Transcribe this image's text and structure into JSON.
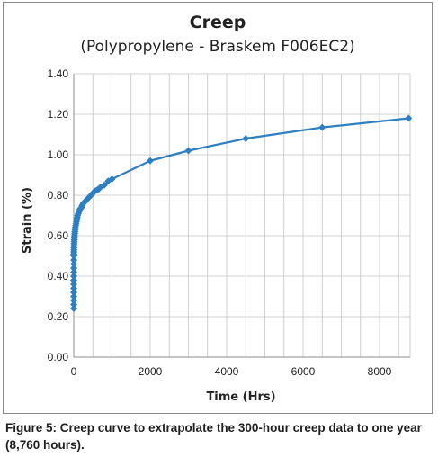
{
  "chart_data": {
    "type": "line",
    "title": "Creep",
    "subtitle": "(Polypropylene - Braskem F006EC2)",
    "xlabel": "Time (Hrs)",
    "ylabel": "Strain (%)",
    "xlim": [
      0,
      8800
    ],
    "ylim": [
      0,
      1.4
    ],
    "x_ticks": [
      "0",
      "2000",
      "4000",
      "6000",
      "8000"
    ],
    "y_ticks": [
      "0.00",
      "0.20",
      "0.40",
      "0.60",
      "0.80",
      "1.00",
      "1.20",
      "1.40"
    ],
    "grid": true,
    "legend": "none",
    "series": [
      {
        "color": "#2e7fc2",
        "marker": "diamond",
        "x": [
          0,
          0,
          0,
          0,
          0,
          0,
          0,
          0,
          0,
          0,
          1,
          1,
          2,
          2,
          3,
          3,
          5,
          6,
          8,
          10,
          12,
          15,
          18,
          20,
          25,
          30,
          35,
          40,
          50,
          60,
          70,
          80,
          90,
          100,
          120,
          140,
          160,
          180,
          200,
          220,
          250,
          280,
          300,
          350,
          400,
          450,
          500,
          550,
          600,
          650,
          700,
          800,
          900,
          1000,
          2000,
          3000,
          4500,
          6500,
          8760
        ],
        "y": [
          0.24,
          0.26,
          0.28,
          0.3,
          0.32,
          0.34,
          0.36,
          0.38,
          0.4,
          0.42,
          0.44,
          0.46,
          0.48,
          0.5,
          0.51,
          0.52,
          0.53,
          0.54,
          0.55,
          0.56,
          0.57,
          0.58,
          0.59,
          0.6,
          0.61,
          0.62,
          0.63,
          0.64,
          0.65,
          0.66,
          0.67,
          0.68,
          0.69,
          0.7,
          0.71,
          0.72,
          0.73,
          0.735,
          0.74,
          0.75,
          0.76,
          0.765,
          0.77,
          0.78,
          0.79,
          0.8,
          0.81,
          0.82,
          0.825,
          0.83,
          0.84,
          0.85,
          0.87,
          0.88,
          0.97,
          1.02,
          1.08,
          1.135,
          1.18
        ]
      }
    ]
  },
  "caption": "Figure 5: Creep curve to extrapolate the 300-hour creep data to one year (8,760 hours)."
}
